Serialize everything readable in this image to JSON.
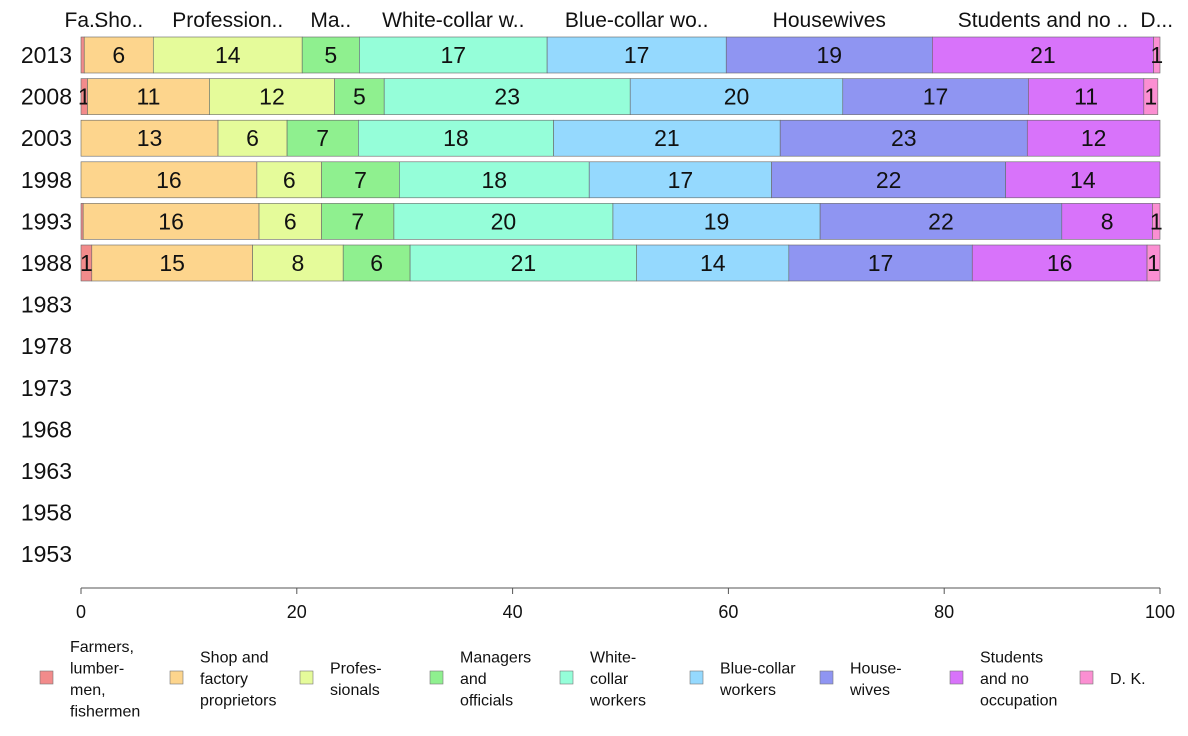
{
  "chart_data": {
    "type": "bar",
    "orientation": "horizontal",
    "stacked": true,
    "title": "",
    "xlabel": "",
    "ylabel": "",
    "xlim": [
      0,
      100
    ],
    "x_ticks": [
      "0",
      "20",
      "40",
      "60",
      "80",
      "100"
    ],
    "categories": [
      "2013",
      "2008",
      "2003",
      "1998",
      "1993",
      "1988",
      "1983",
      "1978",
      "1973",
      "1968",
      "1963",
      "1958",
      "1953"
    ],
    "series": [
      {
        "name": "Farmers, lumbermen, fishermen",
        "color": "#f28b8b",
        "values": [
          0.3,
          0.6,
          0,
          0,
          0.2,
          1,
          null,
          null,
          null,
          null,
          null,
          null,
          null
        ],
        "labels": [
          "",
          "1",
          "",
          "",
          "",
          "1",
          "",
          "",
          "",
          "",
          "",
          "",
          ""
        ]
      },
      {
        "name": "Shop and factory proprietors",
        "color": "#fdd58d",
        "values": [
          6.4,
          11.3,
          12.7,
          16.3,
          16.3,
          14.9,
          null,
          null,
          null,
          null,
          null,
          null,
          null
        ],
        "labels": [
          "6",
          "11",
          "13",
          "16",
          "16",
          "15",
          "",
          "",
          "",
          "",
          "",
          "",
          ""
        ]
      },
      {
        "name": "Professionals",
        "color": "#e5fb9a",
        "values": [
          13.8,
          11.6,
          6.4,
          6,
          5.8,
          8.4,
          null,
          null,
          null,
          null,
          null,
          null,
          null
        ],
        "labels": [
          "14",
          "12",
          "6",
          "6",
          "6",
          "8",
          "",
          "",
          "",
          "",
          "",
          "",
          ""
        ]
      },
      {
        "name": "Managers and officials",
        "color": "#8ff08f",
        "values": [
          5.3,
          4.6,
          6.6,
          7.2,
          6.7,
          6.2,
          null,
          null,
          null,
          null,
          null,
          null,
          null
        ],
        "labels": [
          "5",
          "5",
          "7",
          "7",
          "7",
          "6",
          "",
          "",
          "",
          "",
          "",
          "",
          ""
        ]
      },
      {
        "name": "White-collar workers",
        "color": "#95fed9",
        "values": [
          17.4,
          22.8,
          18.1,
          17.6,
          20.3,
          21,
          null,
          null,
          null,
          null,
          null,
          null,
          null
        ],
        "labels": [
          "17",
          "23",
          "18",
          "18",
          "20",
          "21",
          "",
          "",
          "",
          "",
          "",
          "",
          ""
        ]
      },
      {
        "name": "Blue-collar workers",
        "color": "#95d9fe",
        "values": [
          16.6,
          19.7,
          21,
          16.9,
          19.2,
          14.1,
          null,
          null,
          null,
          null,
          null,
          null,
          null
        ],
        "labels": [
          "17",
          "20",
          "21",
          "17",
          "19",
          "14",
          "",
          "",
          "",
          "",
          "",
          "",
          ""
        ]
      },
      {
        "name": "Housewives",
        "color": "#8f95f2",
        "values": [
          19.1,
          17.2,
          22.9,
          21.7,
          22.4,
          17,
          null,
          null,
          null,
          null,
          null,
          null,
          null
        ],
        "labels": [
          "19",
          "17",
          "23",
          "22",
          "22",
          "17",
          "",
          "",
          "",
          "",
          "",
          "",
          ""
        ]
      },
      {
        "name": "Students and no occupation",
        "color": "#d873fa",
        "values": [
          20.5,
          10.7,
          12.3,
          14.3,
          8.4,
          16.2,
          null,
          null,
          null,
          null,
          null,
          null,
          null
        ],
        "labels": [
          "21",
          "11",
          "12",
          "14",
          "8",
          "16",
          "",
          "",
          "",
          "",
          "",
          "",
          ""
        ]
      },
      {
        "name": "D. K.",
        "color": "#fb8fd2",
        "values": [
          0.6,
          1.3,
          0,
          0,
          0.7,
          1.2,
          null,
          null,
          null,
          null,
          null,
          null,
          null
        ],
        "labels": [
          "1",
          "1",
          "",
          "",
          "1",
          "1",
          "",
          "",
          "",
          "",
          "",
          "",
          ""
        ]
      }
    ],
    "top_labels": [
      "Fa..",
      "Sho..",
      "Profession..",
      "Ma..",
      "White-collar w..",
      "Blue-collar wo..",
      "Housewives",
      "Students and no ..",
      "D..."
    ],
    "legend": {
      "placement": "bottom",
      "items": [
        {
          "lines": [
            "Farmers,",
            "lumber-",
            "men,",
            "fishermen"
          ],
          "color": "#f28b8b"
        },
        {
          "lines": [
            "Shop and",
            "factory",
            "proprietors"
          ],
          "color": "#fdd58d"
        },
        {
          "lines": [
            "Profes-",
            "sionals"
          ],
          "color": "#e5fb9a"
        },
        {
          "lines": [
            "Managers",
            "and",
            "officials"
          ],
          "color": "#8ff08f"
        },
        {
          "lines": [
            "White-",
            "collar",
            "workers"
          ],
          "color": "#95fed9"
        },
        {
          "lines": [
            "Blue-collar",
            "workers"
          ],
          "color": "#95d9fe"
        },
        {
          "lines": [
            "House-",
            "wives"
          ],
          "color": "#8f95f2"
        },
        {
          "lines": [
            "Students",
            "and no",
            "occupation"
          ],
          "color": "#d873fa"
        },
        {
          "lines": [
            "D. K."
          ],
          "color": "#fb8fd2"
        }
      ]
    }
  }
}
